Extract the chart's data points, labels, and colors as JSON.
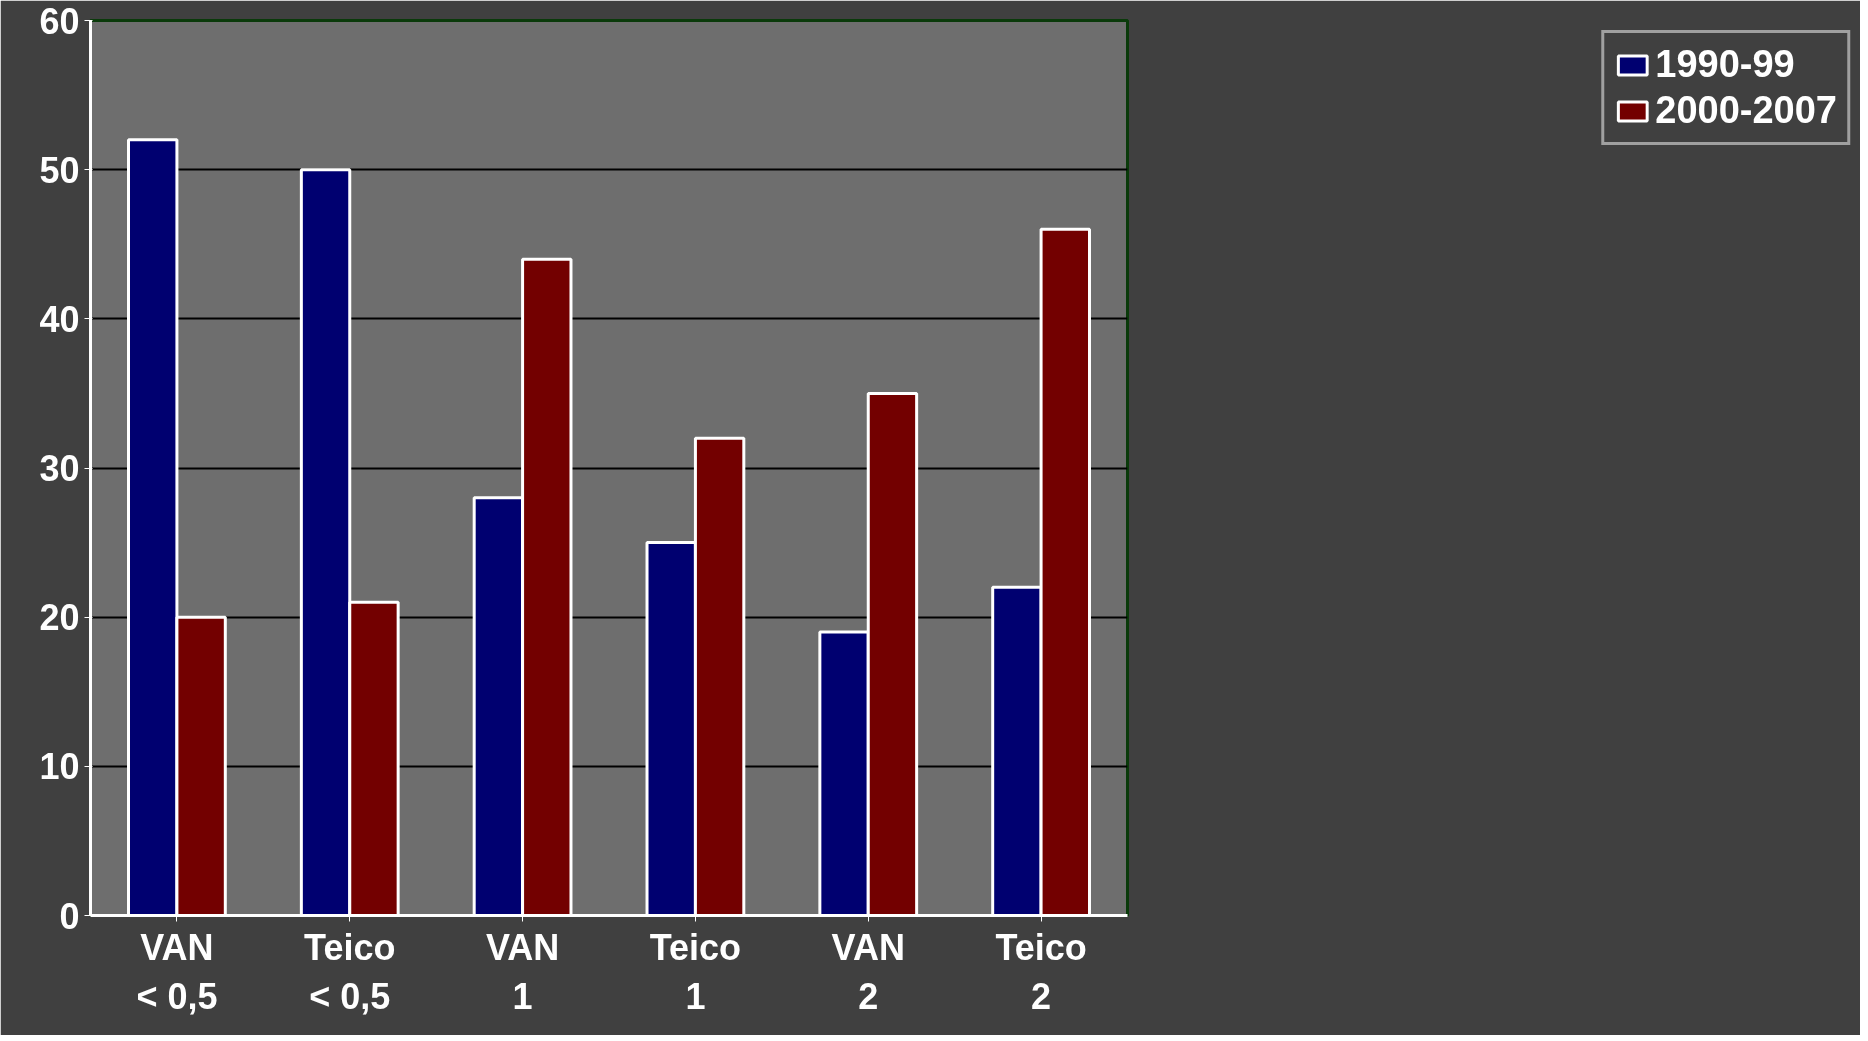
{
  "chart_data": {
    "type": "bar",
    "categories": [
      "VAN\n< 0,5",
      "Teico\n< 0,5",
      "VAN\n1",
      "Teico\n1",
      "VAN\n2",
      "Teico\n2"
    ],
    "series": [
      {
        "name": "1990-99",
        "color": "#000070",
        "values": [
          52,
          50,
          28,
          25,
          19,
          22
        ]
      },
      {
        "name": "2000-2007",
        "color": "#730000",
        "values": [
          20,
          21,
          44,
          32,
          35,
          46
        ]
      }
    ],
    "ylim": [
      0,
      60
    ],
    "yticks": [
      0,
      10,
      20,
      30,
      40,
      50,
      60
    ],
    "grid": "y",
    "legend": "right"
  }
}
